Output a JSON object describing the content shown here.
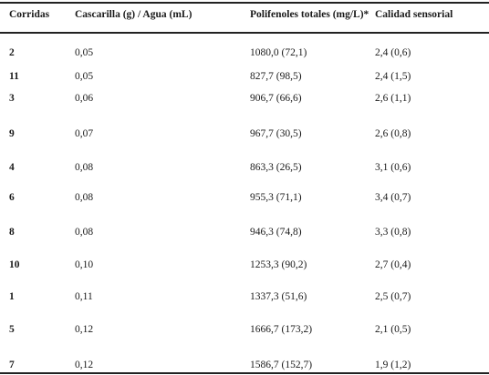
{
  "table": {
    "headers": [
      "Corridas",
      "Cascarilla (g) / Agua (mL)",
      "Polifenoles totales (mg/L)*",
      "Calidad sensorial"
    ],
    "rows": [
      [
        "2",
        "0,05",
        "1080,0 (72,1)",
        "2,4 (0,6)"
      ],
      [
        "11",
        "0,05",
        "827,7 (98,5)",
        "2,4 (1,5)"
      ],
      [
        "3",
        "0,06",
        "906,7 (66,6)",
        "2,6 (1,1)"
      ],
      [
        "9",
        "0,07",
        "967,7 (30,5)",
        "2,6 (0,8)"
      ],
      [
        "4",
        "0,08",
        "863,3 (26,5)",
        "3,1 (0,6)"
      ],
      [
        "6",
        "0,08",
        "955,3 (71,1)",
        "3,4 (0,7)"
      ],
      [
        "8",
        "0,08",
        "946,3 (74,8)",
        "3,3 (0,8)"
      ],
      [
        "10",
        "0,10",
        "1253,3 (90,2)",
        "2,7 (0,4)"
      ],
      [
        "1",
        "0,11",
        "1337,3 (51,6)",
        "2,5 (0,7)"
      ],
      [
        "5",
        "0,12",
        "1666,7 (173,2)",
        "2,1 (0,5)"
      ],
      [
        "7",
        "0,12",
        "1586,7 (152,7)",
        "1,9 (1,2)"
      ]
    ]
  }
}
